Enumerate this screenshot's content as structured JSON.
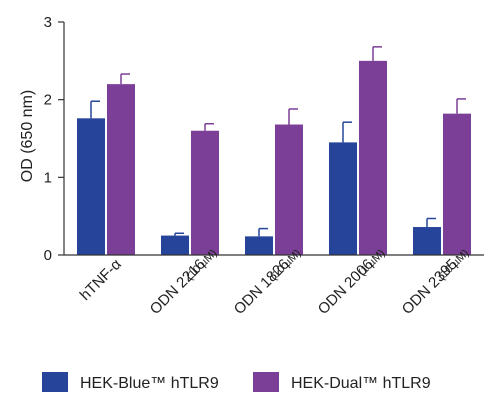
{
  "chart_data": {
    "type": "bar",
    "ylabel": "OD (650 nm)",
    "ylim": [
      0,
      3
    ],
    "yticks": [
      "0",
      "1",
      "2",
      "3"
    ],
    "categories": [
      {
        "label": "hTNF-α",
        "sub": ""
      },
      {
        "label": "ODN 2216",
        "sub": "(10 µM)"
      },
      {
        "label": "ODN 1826",
        "sub": "(10 µM)"
      },
      {
        "label": "ODN 2006",
        "sub": "(1 µM)"
      },
      {
        "label": "ODN 2395",
        "sub": "(10 µM)"
      }
    ],
    "series": [
      {
        "name": "HEK-Blue™ hTLR9",
        "color": "#26449a",
        "values": [
          1.76,
          0.25,
          0.24,
          1.45,
          0.36
        ],
        "errors": [
          0.22,
          0.03,
          0.1,
          0.26,
          0.11
        ]
      },
      {
        "name": "HEK-Dual™ hTLR9",
        "color": "#7b3f98",
        "values": [
          2.2,
          1.6,
          1.68,
          2.5,
          1.82
        ],
        "errors": [
          0.13,
          0.09,
          0.2,
          0.18,
          0.19
        ]
      }
    ],
    "legend_position": "bottom",
    "error_bars": true
  }
}
